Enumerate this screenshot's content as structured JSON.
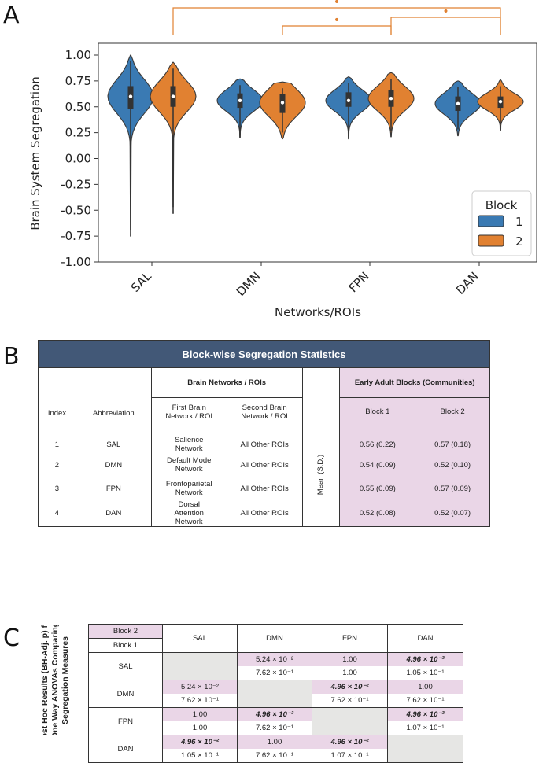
{
  "panels": {
    "a": "A",
    "b": "B",
    "c": "C"
  },
  "chart_data": {
    "type": "violin",
    "title": "",
    "xlabel": "Networks/ROIs",
    "ylabel": "Brain System Segregation",
    "ylim": [
      -1.0,
      1.0
    ],
    "yticks": [
      "1.00",
      "0.75",
      "0.50",
      "0.25",
      "0.00",
      "-0.25",
      "-0.50",
      "-0.75",
      "-1.00"
    ],
    "categories": [
      "SAL",
      "DMN",
      "FPN",
      "DAN"
    ],
    "legend": {
      "title": "Block",
      "entries": [
        "1",
        "2"
      ],
      "placement": "center-right"
    },
    "colors": {
      "block1": "#3a7ab3",
      "block2": "#e18131"
    },
    "series": [
      {
        "name": "1",
        "min": [
          -0.75,
          0.2,
          0.19,
          0.22
        ],
        "q1": [
          0.48,
          0.49,
          0.5,
          0.46
        ],
        "median": [
          0.6,
          0.56,
          0.56,
          0.53
        ],
        "q3": [
          0.7,
          0.63,
          0.64,
          0.6
        ],
        "max": [
          1.0,
          0.77,
          0.79,
          0.75
        ]
      },
      {
        "name": "2",
        "min": [
          -0.53,
          0.19,
          0.21,
          0.27
        ],
        "q1": [
          0.5,
          0.44,
          0.5,
          0.49
        ],
        "median": [
          0.6,
          0.54,
          0.58,
          0.55
        ],
        "q3": [
          0.7,
          0.62,
          0.66,
          0.6
        ],
        "max": [
          0.93,
          0.74,
          0.83,
          0.76
        ]
      }
    ],
    "significance_brackets": [
      {
        "from": "SAL",
        "to": "DAN",
        "marker": "•"
      },
      {
        "from": "DMN",
        "to": "FPN",
        "marker": "•"
      },
      {
        "from": "FPN",
        "to": "DAN",
        "marker": "•"
      }
    ]
  },
  "tableB": {
    "title": "Block-wise Segregation Statistics",
    "col_index": "Index",
    "col_abbrev": "Abbreviation",
    "group_networks": "Brain Networks / ROIs",
    "col_first": "First Brain Network / ROI",
    "col_second": "Second Brain Network / ROI",
    "group_blocks": "Early Adult Blocks (Communities)",
    "col_block1": "Block 1",
    "col_block2": "Block 2",
    "stat_label": "Mean (S.D.)",
    "rows": [
      {
        "index": "1",
        "abbr": "SAL",
        "first": "Salience Network",
        "second": "All Other ROIs",
        "b1": "0.56 (0.22)",
        "b2": "0.57 (0.18)"
      },
      {
        "index": "2",
        "abbr": "DMN",
        "first": "Default Mode Network",
        "second": "All Other ROIs",
        "b1": "0.54 (0.09)",
        "b2": "0.52 (0.10)"
      },
      {
        "index": "3",
        "abbr": "FPN",
        "first": "Frontoparietal Network",
        "second": "All Other ROIs",
        "b1": "0.55 (0.09)",
        "b2": "0.57 (0.09)"
      },
      {
        "index": "4",
        "abbr": "DAN",
        "first": "Dorsal Attention Network",
        "second": "All Other ROIs",
        "b1": "0.52 (0.08)",
        "b2": "0.52 (0.07)"
      }
    ]
  },
  "tableC": {
    "side_title_line1": "Post Hoc Results (BH-Adj. p) for",
    "side_title_line2": "One Way ANOVAs Comparing",
    "side_title_line3": "Segregation Measures",
    "corner_block2": "Block 2",
    "corner_block1": "Block 1",
    "cols": [
      "SAL",
      "DMN",
      "FPN",
      "DAN"
    ],
    "rows": [
      {
        "label": "SAL",
        "cells": [
          {
            "b2": "",
            "b1": "",
            "diag": true
          },
          {
            "b2": "5.24 × 10⁻²",
            "b1": "7.62 × 10⁻¹"
          },
          {
            "b2": "1.00",
            "b1": "1.00"
          },
          {
            "b2": "4.96 × 10⁻²",
            "b1": "1.05 × 10⁻¹",
            "sig": true
          }
        ]
      },
      {
        "label": "DMN",
        "cells": [
          {
            "b2": "5.24 × 10⁻²",
            "b1": "7.62 × 10⁻¹"
          },
          {
            "b2": "",
            "b1": "",
            "diag": true
          },
          {
            "b2": "4.96 × 10⁻²",
            "b1": "7.62 × 10⁻¹",
            "sig": true
          },
          {
            "b2": "1.00",
            "b1": "7.62 × 10⁻¹"
          }
        ]
      },
      {
        "label": "FPN",
        "cells": [
          {
            "b2": "1.00",
            "b1": "1.00"
          },
          {
            "b2": "4.96 × 10⁻²",
            "b1": "7.62 × 10⁻¹",
            "sig": true
          },
          {
            "b2": "",
            "b1": "",
            "diag": true
          },
          {
            "b2": "4.96 × 10⁻²",
            "b1": "1.07 × 10⁻¹",
            "sig": true
          }
        ]
      },
      {
        "label": "DAN",
        "cells": [
          {
            "b2": "4.96 × 10⁻²",
            "b1": "1.05 × 10⁻¹",
            "sig": true
          },
          {
            "b2": "1.00",
            "b1": "7.62 × 10⁻¹"
          },
          {
            "b2": "4.96 × 10⁻²",
            "b1": "1.07 × 10⁻¹",
            "sig": true
          },
          {
            "b2": "",
            "b1": "",
            "diag": true
          }
        ]
      }
    ]
  }
}
